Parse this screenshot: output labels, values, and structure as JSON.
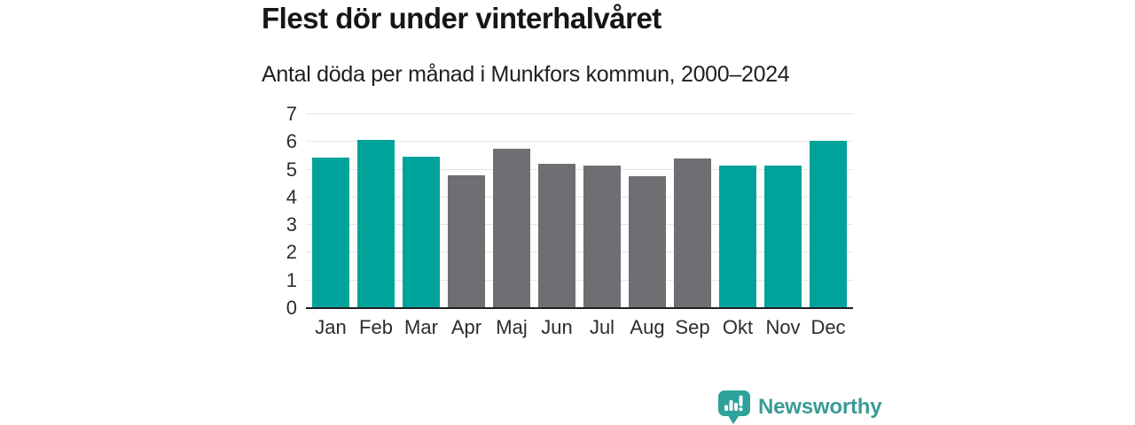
{
  "title": "Flest dör under vinterhalvåret",
  "subtitle": "Antal döda per månad i Munkfors kommun, 2000–2024",
  "brand": {
    "wordmark": "Newsworthy",
    "icon": "bar-chart-speech-bubble-icon",
    "wordmark_color": "#3a9b95",
    "icon_color": "#2ea29a"
  },
  "colors": {
    "winter_bar": "#00a39a",
    "summer_bar": "#6e6e73",
    "gridline": "#e4e4e6",
    "axis_line": "#202024",
    "text": "#15151a"
  },
  "chart_data": {
    "type": "bar",
    "title": "Flest dör under vinterhalvåret",
    "subtitle": "Antal döda per månad i Munkfors kommun, 2000–2024",
    "categories": [
      "Jan",
      "Feb",
      "Mar",
      "Apr",
      "Maj",
      "Jun",
      "Jul",
      "Aug",
      "Sep",
      "Okt",
      "Nov",
      "Dec"
    ],
    "values": [
      5.44,
      6.08,
      5.48,
      4.8,
      5.76,
      5.2,
      5.16,
      4.76,
      5.4,
      5.16,
      5.16,
      6.04
    ],
    "seasons": [
      "winter",
      "winter",
      "winter",
      "summer",
      "summer",
      "summer",
      "summer",
      "summer",
      "summer",
      "winter",
      "winter",
      "winter"
    ],
    "xlabel": "",
    "ylabel": "",
    "ylim": [
      0,
      7
    ],
    "yticks": [
      0,
      1,
      2,
      3,
      4,
      5,
      6,
      7
    ],
    "grid": "horizontal",
    "legend": "none"
  }
}
